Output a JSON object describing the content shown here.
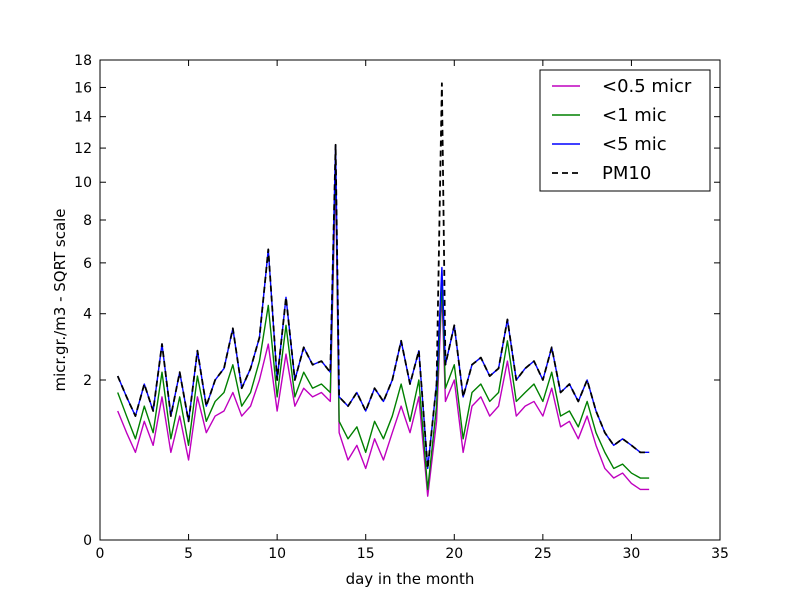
{
  "chart_data": {
    "type": "line",
    "xlabel": "day in the month",
    "ylabel": "micr.gr./m3 - SQRT scale",
    "xlim": [
      0,
      35
    ],
    "ylim": [
      0,
      18
    ],
    "y_scale": "sqrt",
    "grid": false,
    "legend_position": "top-right",
    "x_ticks": [
      "0",
      "5",
      "10",
      "15",
      "20",
      "25",
      "30",
      "35"
    ],
    "y_ticks": [
      "0",
      "2",
      "4",
      "6",
      "8",
      "10",
      "12",
      "14",
      "16",
      "18"
    ],
    "x_tick_values": [
      0,
      5,
      10,
      15,
      20,
      25,
      30,
      35
    ],
    "y_tick_values": [
      0,
      2,
      4,
      6,
      8,
      10,
      12,
      14,
      16,
      18
    ],
    "x": [
      1.0,
      1.5,
      2.0,
      2.5,
      3.0,
      3.5,
      4.0,
      4.5,
      5.0,
      5.5,
      6.0,
      6.5,
      7.0,
      7.5,
      8.0,
      8.5,
      9.0,
      9.5,
      10.0,
      10.5,
      11.0,
      11.5,
      12.0,
      12.5,
      13.0,
      13.3,
      13.5,
      14.0,
      14.5,
      15.0,
      15.5,
      16.0,
      16.5,
      17.0,
      17.5,
      18.0,
      18.5,
      19.0,
      19.3,
      19.5,
      20.0,
      20.5,
      21.0,
      21.5,
      22.0,
      22.5,
      23.0,
      23.5,
      24.0,
      24.5,
      25.0,
      25.5,
      26.0,
      26.5,
      27.0,
      27.5,
      28.0,
      28.5,
      29.0,
      29.5,
      30.0,
      30.5,
      31.0
    ],
    "series": [
      {
        "name": "<0.5 micr",
        "color": "#bf00bf",
        "dash": "solid",
        "values": [
          1.3,
          0.9,
          0.6,
          1.1,
          0.7,
          1.6,
          0.6,
          1.2,
          0.5,
          1.6,
          0.9,
          1.2,
          1.3,
          1.7,
          1.2,
          1.4,
          2.0,
          3.0,
          1.3,
          2.7,
          1.4,
          1.8,
          1.6,
          1.7,
          1.5,
          10.5,
          0.9,
          0.5,
          0.7,
          0.4,
          0.8,
          0.5,
          0.9,
          1.4,
          0.9,
          1.6,
          0.15,
          1.1,
          4.8,
          1.5,
          2.0,
          0.6,
          1.4,
          1.6,
          1.2,
          1.4,
          2.5,
          1.2,
          1.4,
          1.5,
          1.2,
          1.8,
          1.0,
          1.1,
          0.8,
          1.2,
          0.7,
          0.4,
          0.3,
          0.35,
          0.25,
          0.2,
          0.2
        ]
      },
      {
        "name": "<1 mic",
        "color": "#008000",
        "dash": "solid",
        "values": [
          1.7,
          1.2,
          0.8,
          1.4,
          0.9,
          2.2,
          0.8,
          1.6,
          0.7,
          2.1,
          1.1,
          1.5,
          1.7,
          2.4,
          1.4,
          1.7,
          2.5,
          4.3,
          1.6,
          3.6,
          1.6,
          2.2,
          1.8,
          1.9,
          1.7,
          11.5,
          1.1,
          0.8,
          1.0,
          0.6,
          1.1,
          0.8,
          1.2,
          1.9,
          1.1,
          2.0,
          0.2,
          1.4,
          5.2,
          1.8,
          2.4,
          0.8,
          1.7,
          1.9,
          1.5,
          1.7,
          3.1,
          1.5,
          1.7,
          1.9,
          1.5,
          2.2,
          1.2,
          1.3,
          1.0,
          1.5,
          0.9,
          0.6,
          0.4,
          0.45,
          0.35,
          0.3,
          0.3
        ]
      },
      {
        "name": "<5 mic",
        "color": "#0000ff",
        "dash": "solid",
        "values": [
          2.1,
          1.6,
          1.2,
          1.9,
          1.3,
          3.0,
          1.2,
          2.2,
          1.1,
          2.8,
          1.4,
          2.0,
          2.3,
          3.5,
          1.8,
          2.3,
          3.2,
          6.6,
          2.0,
          4.6,
          2.0,
          2.9,
          2.4,
          2.5,
          2.2,
          12.2,
          1.6,
          1.4,
          1.7,
          1.3,
          1.8,
          1.5,
          2.0,
          3.1,
          1.9,
          2.8,
          0.4,
          1.9,
          5.8,
          2.4,
          3.6,
          1.6,
          2.4,
          2.6,
          2.1,
          2.3,
          3.8,
          2.0,
          2.3,
          2.5,
          2.0,
          2.9,
          1.7,
          1.9,
          1.5,
          2.0,
          1.3,
          0.9,
          0.7,
          0.8,
          0.7,
          0.6,
          0.6
        ]
      },
      {
        "name": "PM10",
        "color": "#000000",
        "dash": "dashed",
        "values": [
          2.1,
          1.6,
          1.2,
          1.9,
          1.3,
          3.0,
          1.2,
          2.2,
          1.1,
          2.8,
          1.4,
          2.0,
          2.3,
          3.5,
          1.8,
          2.3,
          3.2,
          6.6,
          2.0,
          4.6,
          2.0,
          2.9,
          2.4,
          2.5,
          2.2,
          12.2,
          1.6,
          1.4,
          1.7,
          1.3,
          1.8,
          1.5,
          2.0,
          3.1,
          1.9,
          2.8,
          0.4,
          1.9,
          16.3,
          2.4,
          3.6,
          1.6,
          2.4,
          2.6,
          2.1,
          2.3,
          3.8,
          2.0,
          2.3,
          2.5,
          2.0,
          2.9,
          1.7,
          1.9,
          1.5,
          2.0,
          1.3,
          0.9,
          0.7,
          0.8,
          0.7,
          0.6,
          0.6
        ]
      }
    ]
  }
}
